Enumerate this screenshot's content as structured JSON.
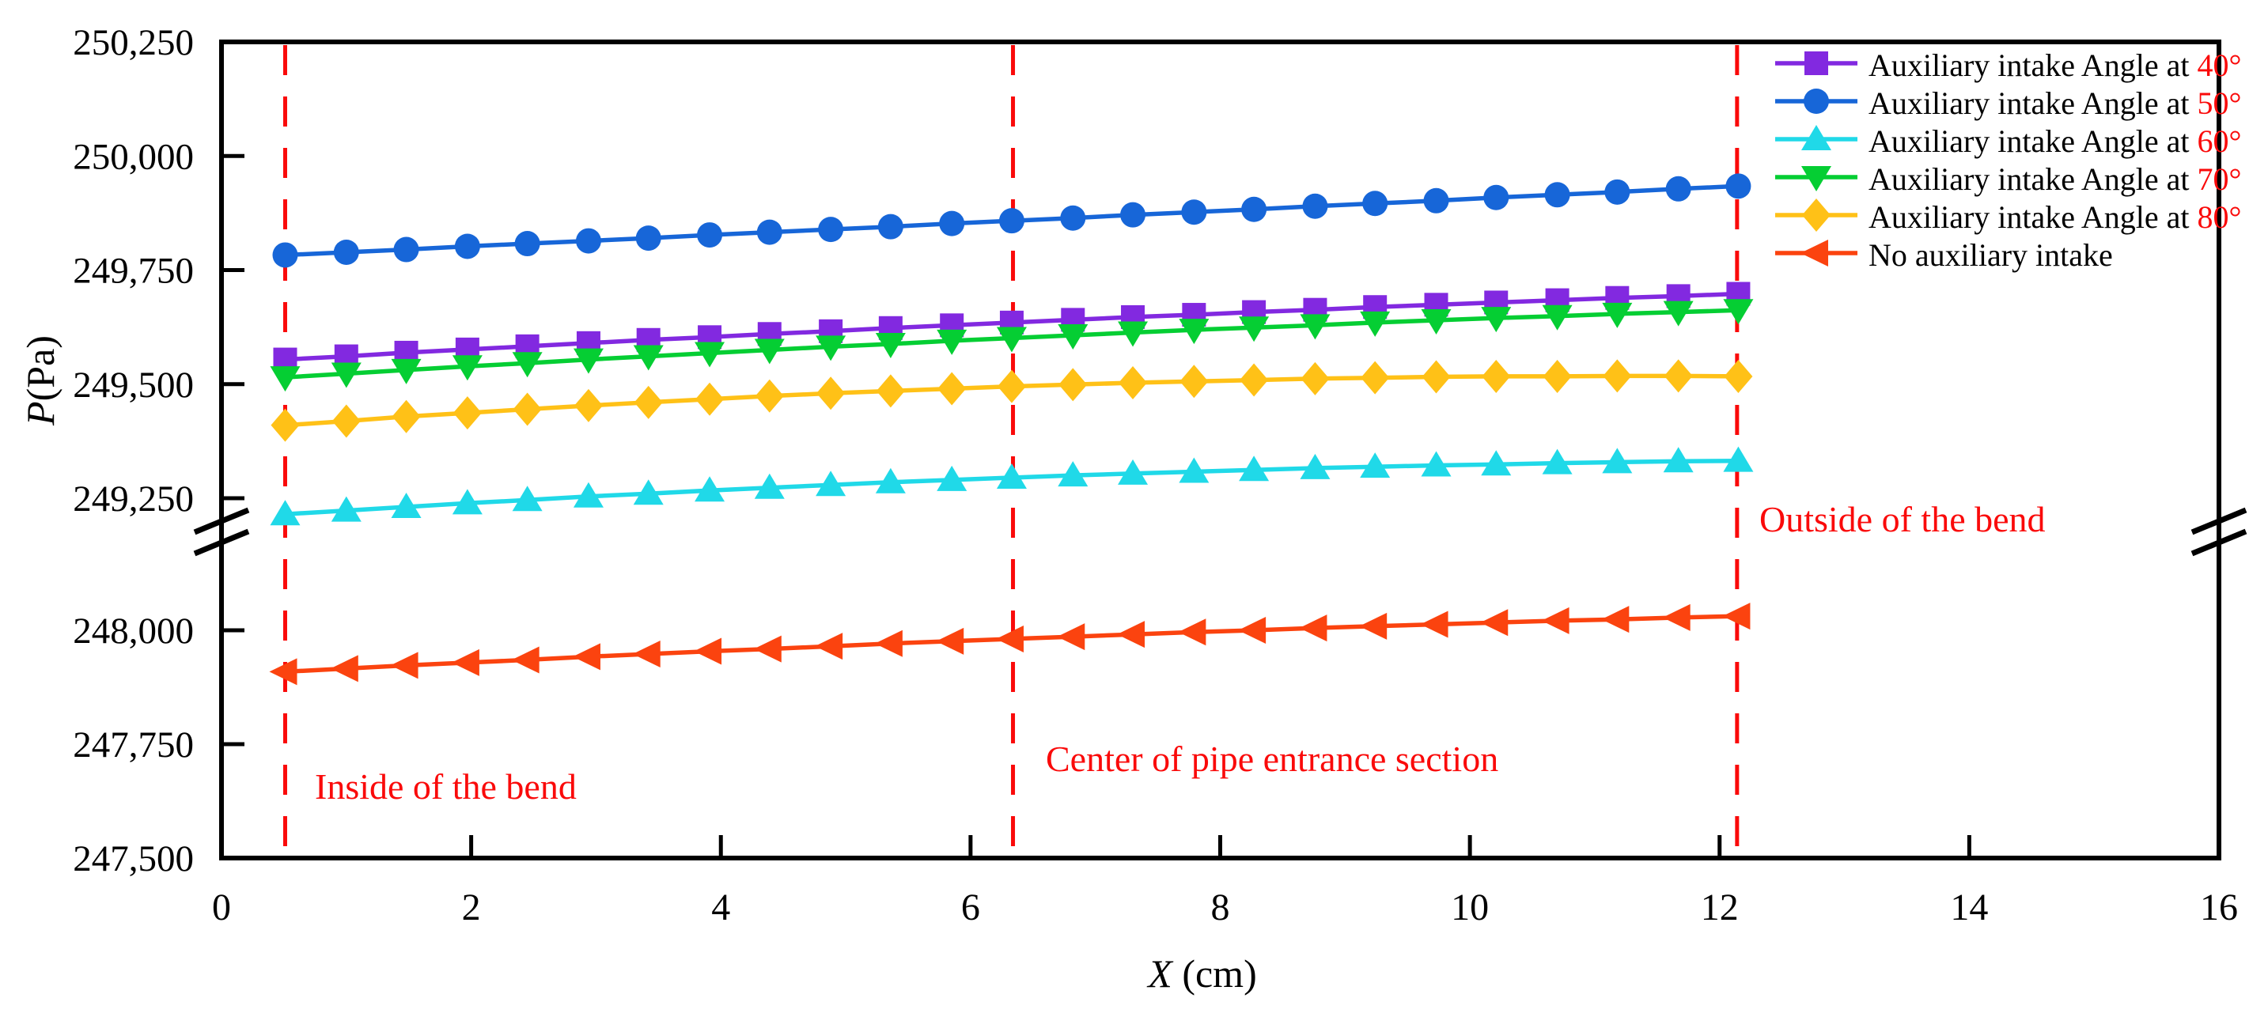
{
  "chart_data": {
    "type": "line",
    "xlabel_letter": "X",
    "xlabel_unit": "(cm)",
    "ylabel_letter": "P",
    "ylabel_unit": "(Pa)",
    "x_axis": {
      "min": 0,
      "max": 16,
      "ticks": [
        0,
        2,
        4,
        6,
        8,
        10,
        12,
        14,
        16
      ]
    },
    "y_axis": {
      "ticks_upper": [
        {
          "value": 250250,
          "label": "250,250"
        },
        {
          "value": 250000,
          "label": "250,000"
        },
        {
          "value": 249750,
          "label": "249,750"
        },
        {
          "value": 249500,
          "label": "249,500"
        },
        {
          "value": 249250,
          "label": "249,250"
        }
      ],
      "ticks_lower": [
        {
          "value": 248000,
          "label": "248,000"
        },
        {
          "value": 247750,
          "label": "247,750"
        },
        {
          "value": 247500,
          "label": "247,500"
        }
      ],
      "axis_break": {
        "upper_min": 249200,
        "lower_max": 248170
      }
    },
    "x": [
      0.51,
      1.0,
      1.48,
      1.97,
      2.45,
      2.94,
      3.42,
      3.91,
      4.39,
      4.88,
      5.36,
      5.85,
      6.33,
      6.82,
      7.3,
      7.79,
      8.27,
      8.76,
      9.24,
      9.73,
      10.21,
      10.7,
      11.18,
      11.67,
      12.15
    ],
    "series": [
      {
        "name": "Auxiliary intake Angle at 50°",
        "color": "#1766d8",
        "marker": "circle",
        "values": [
          249783,
          249789,
          249795,
          249802,
          249808,
          249814,
          249820,
          249827,
          249833,
          249839,
          249845,
          249852,
          249858,
          249864,
          249871,
          249877,
          249883,
          249890,
          249896,
          249902,
          249909,
          249915,
          249921,
          249928,
          249934
        ]
      },
      {
        "name": "Auxiliary intake Angle at 40°",
        "color": "#8229e0",
        "marker": "square",
        "values": [
          249554,
          249561,
          249569,
          249576,
          249583,
          249590,
          249597,
          249603,
          249610,
          249616,
          249623,
          249629,
          249635,
          249641,
          249647,
          249652,
          249658,
          249663,
          249669,
          249674,
          249679,
          249684,
          249689,
          249693,
          249698
        ]
      },
      {
        "name": "Auxiliary intake Angle at 70°",
        "color": "#05ce33",
        "marker": "triangle-down",
        "values": [
          249515,
          249523,
          249531,
          249539,
          249546,
          249554,
          249561,
          249568,
          249575,
          249582,
          249588,
          249595,
          249601,
          249607,
          249613,
          249619,
          249624,
          249629,
          249635,
          249640,
          249645,
          249649,
          249654,
          249658,
          249662
        ]
      },
      {
        "name": "Auxiliary intake Angle at 80°",
        "color": "#ffc117",
        "marker": "diamond",
        "values": [
          249410,
          249419,
          249429,
          249437,
          249445,
          249453,
          249460,
          249467,
          249474,
          249480,
          249485,
          249490,
          249495,
          249499,
          249503,
          249506,
          249509,
          249512,
          249514,
          249516,
          249517,
          249517,
          249518,
          249518,
          249517
        ]
      },
      {
        "name": "Auxiliary intake Angle at 60°",
        "color": "#20d9e8",
        "marker": "triangle-up",
        "values": [
          249215,
          249223,
          249231,
          249239,
          249246,
          249254,
          249260,
          249267,
          249273,
          249279,
          249285,
          249290,
          249295,
          249300,
          249304,
          249308,
          249312,
          249316,
          249319,
          249322,
          249324,
          249327,
          249329,
          249331,
          249332
        ]
      },
      {
        "name": "No auxiliary intake",
        "color": "#fb430f",
        "marker": "triangle-left",
        "values": [
          247909,
          247916,
          247923,
          247929,
          247935,
          247942,
          247948,
          247954,
          247959,
          247965,
          247971,
          247976,
          247981,
          247986,
          247991,
          247996,
          248000,
          248005,
          248009,
          248013,
          248017,
          248021,
          248024,
          248028,
          248031
        ]
      }
    ],
    "legend": [
      {
        "label": "Auxiliary intake Angle at ",
        "value": "40°",
        "color": "#8229e0",
        "marker": "square"
      },
      {
        "label": "Auxiliary intake Angle at ",
        "value": "50°",
        "color": "#1766d8",
        "marker": "circle"
      },
      {
        "label": "Auxiliary intake Angle at ",
        "value": "60°",
        "color": "#20d9e8",
        "marker": "triangle-up"
      },
      {
        "label": "Auxiliary intake Angle at ",
        "value": "70°",
        "color": "#05ce33",
        "marker": "triangle-down"
      },
      {
        "label": "Auxiliary intake Angle at ",
        "value": "80°",
        "color": "#ffc117",
        "marker": "diamond"
      },
      {
        "label": "No auxiliary intake",
        "value": "",
        "color": "#fb430f",
        "marker": "triangle-left"
      }
    ],
    "annotations": {
      "vline_color": "#fa0a0a",
      "vlines_x": [
        0.51,
        6.34,
        12.14
      ],
      "texts": [
        {
          "text": "Inside of the bend"
        },
        {
          "text": "Center of pipe entrance section"
        },
        {
          "text": "Outside of the bend"
        }
      ]
    },
    "grid": false,
    "legend_position": "top-right-inside"
  }
}
